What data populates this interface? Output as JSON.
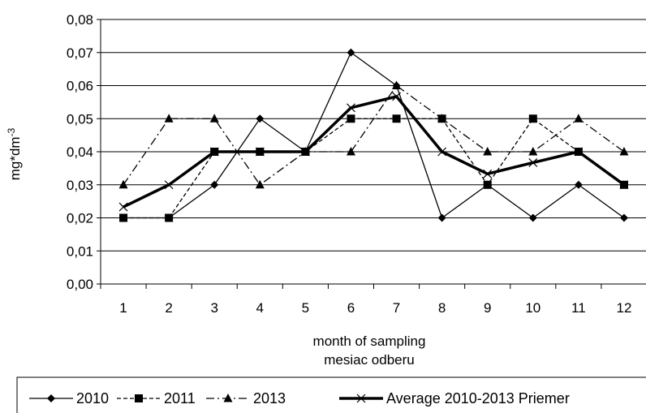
{
  "chart_data": {
    "type": "line",
    "categories": [
      "1",
      "2",
      "3",
      "4",
      "5",
      "6",
      "7",
      "8",
      "9",
      "10",
      "11",
      "12"
    ],
    "ylabel_base": "mg*dm",
    "ylabel_sup": "-3",
    "xlabel_line1": "month of sampling",
    "xlabel_line2": "mesiac odberu",
    "ylim": [
      0,
      0.08
    ],
    "yticks": [
      "0,00",
      "0,01",
      "0,02",
      "0,03",
      "0,04",
      "0,05",
      "0,06",
      "0,07",
      "0,08"
    ],
    "ytick_values": [
      0,
      0.01,
      0.02,
      0.03,
      0.04,
      0.05,
      0.06,
      0.07,
      0.08
    ],
    "grid": "horizontal",
    "legend_position": "bottom",
    "series": [
      {
        "name": "2010",
        "style": "solid",
        "marker": "diamond",
        "color": "#000000",
        "values": [
          0.02,
          0.02,
          0.03,
          0.05,
          0.04,
          0.07,
          0.06,
          0.02,
          0.03,
          0.02,
          0.03,
          0.02
        ]
      },
      {
        "name": "2011",
        "style": "dashed",
        "marker": "square",
        "color": "#000000",
        "values": [
          0.02,
          0.02,
          0.04,
          0.04,
          0.04,
          0.05,
          0.05,
          0.05,
          0.03,
          0.05,
          0.04,
          0.03
        ]
      },
      {
        "name": "2013",
        "style": "dashdot",
        "marker": "triangle",
        "color": "#000000",
        "values": [
          0.03,
          0.05,
          0.05,
          0.03,
          0.04,
          0.04,
          0.06,
          0.05,
          0.04,
          0.04,
          0.05,
          0.04
        ]
      },
      {
        "name": "Average 2010-2013 Priemer",
        "style": "thick",
        "marker": "x",
        "color": "#000000",
        "values": [
          0.0233,
          0.03,
          0.04,
          0.04,
          0.04,
          0.0533,
          0.0567,
          0.04,
          0.0333,
          0.0367,
          0.04,
          0.03
        ]
      }
    ]
  }
}
